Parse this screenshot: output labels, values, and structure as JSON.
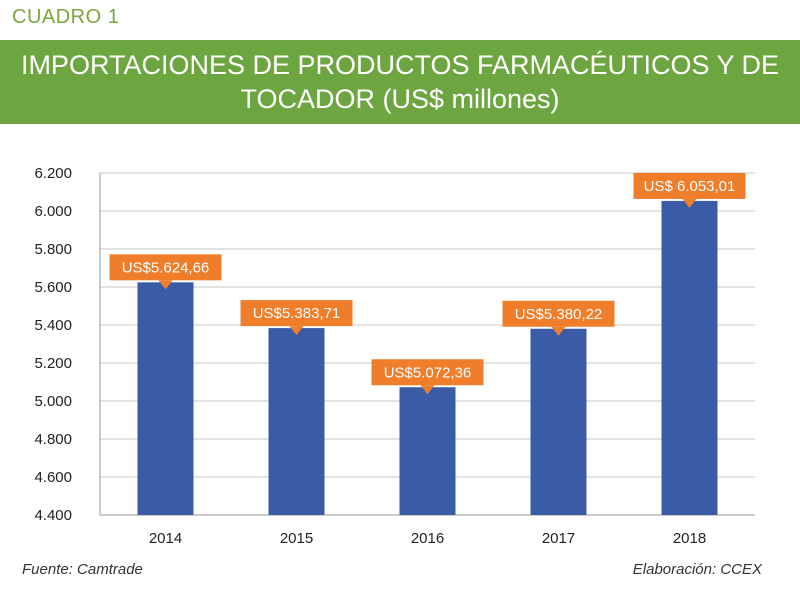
{
  "header": {
    "kicker": "CUADRO 1",
    "title_line1": "IMPORTACIONES DE PRODUCTOS FARMACÉUTICOS Y DE",
    "title_line2": "TOCADOR (US$ millones)"
  },
  "footer": {
    "source": "Fuente: Camtrade",
    "credit": "Elaboración: CCEX"
  },
  "colors": {
    "banner": "#6da540",
    "bar": "#3a5ca7",
    "label": "#f07d2a",
    "grid": "#c7c7c7"
  },
  "chart_data": {
    "type": "bar",
    "categories": [
      "2014",
      "2015",
      "2016",
      "2017",
      "2018"
    ],
    "values": [
      5624.66,
      5383.71,
      5072.36,
      5380.22,
      6053.01
    ],
    "data_labels": [
      "US$5.624,66",
      "US$5.383,71",
      "US$5.072,36",
      "US$5.380,22",
      "US$ 6.053,01"
    ],
    "ylim": [
      4400,
      6200
    ],
    "yticks": [
      4400,
      4600,
      4800,
      5000,
      5200,
      5400,
      5600,
      5800,
      6000,
      6200
    ],
    "ytick_labels": [
      "4.400",
      "4.600",
      "4.800",
      "5.000",
      "5.200",
      "5.400",
      "5.600",
      "5.800",
      "6.000",
      "6.200"
    ],
    "grid": true,
    "legend": "none"
  }
}
